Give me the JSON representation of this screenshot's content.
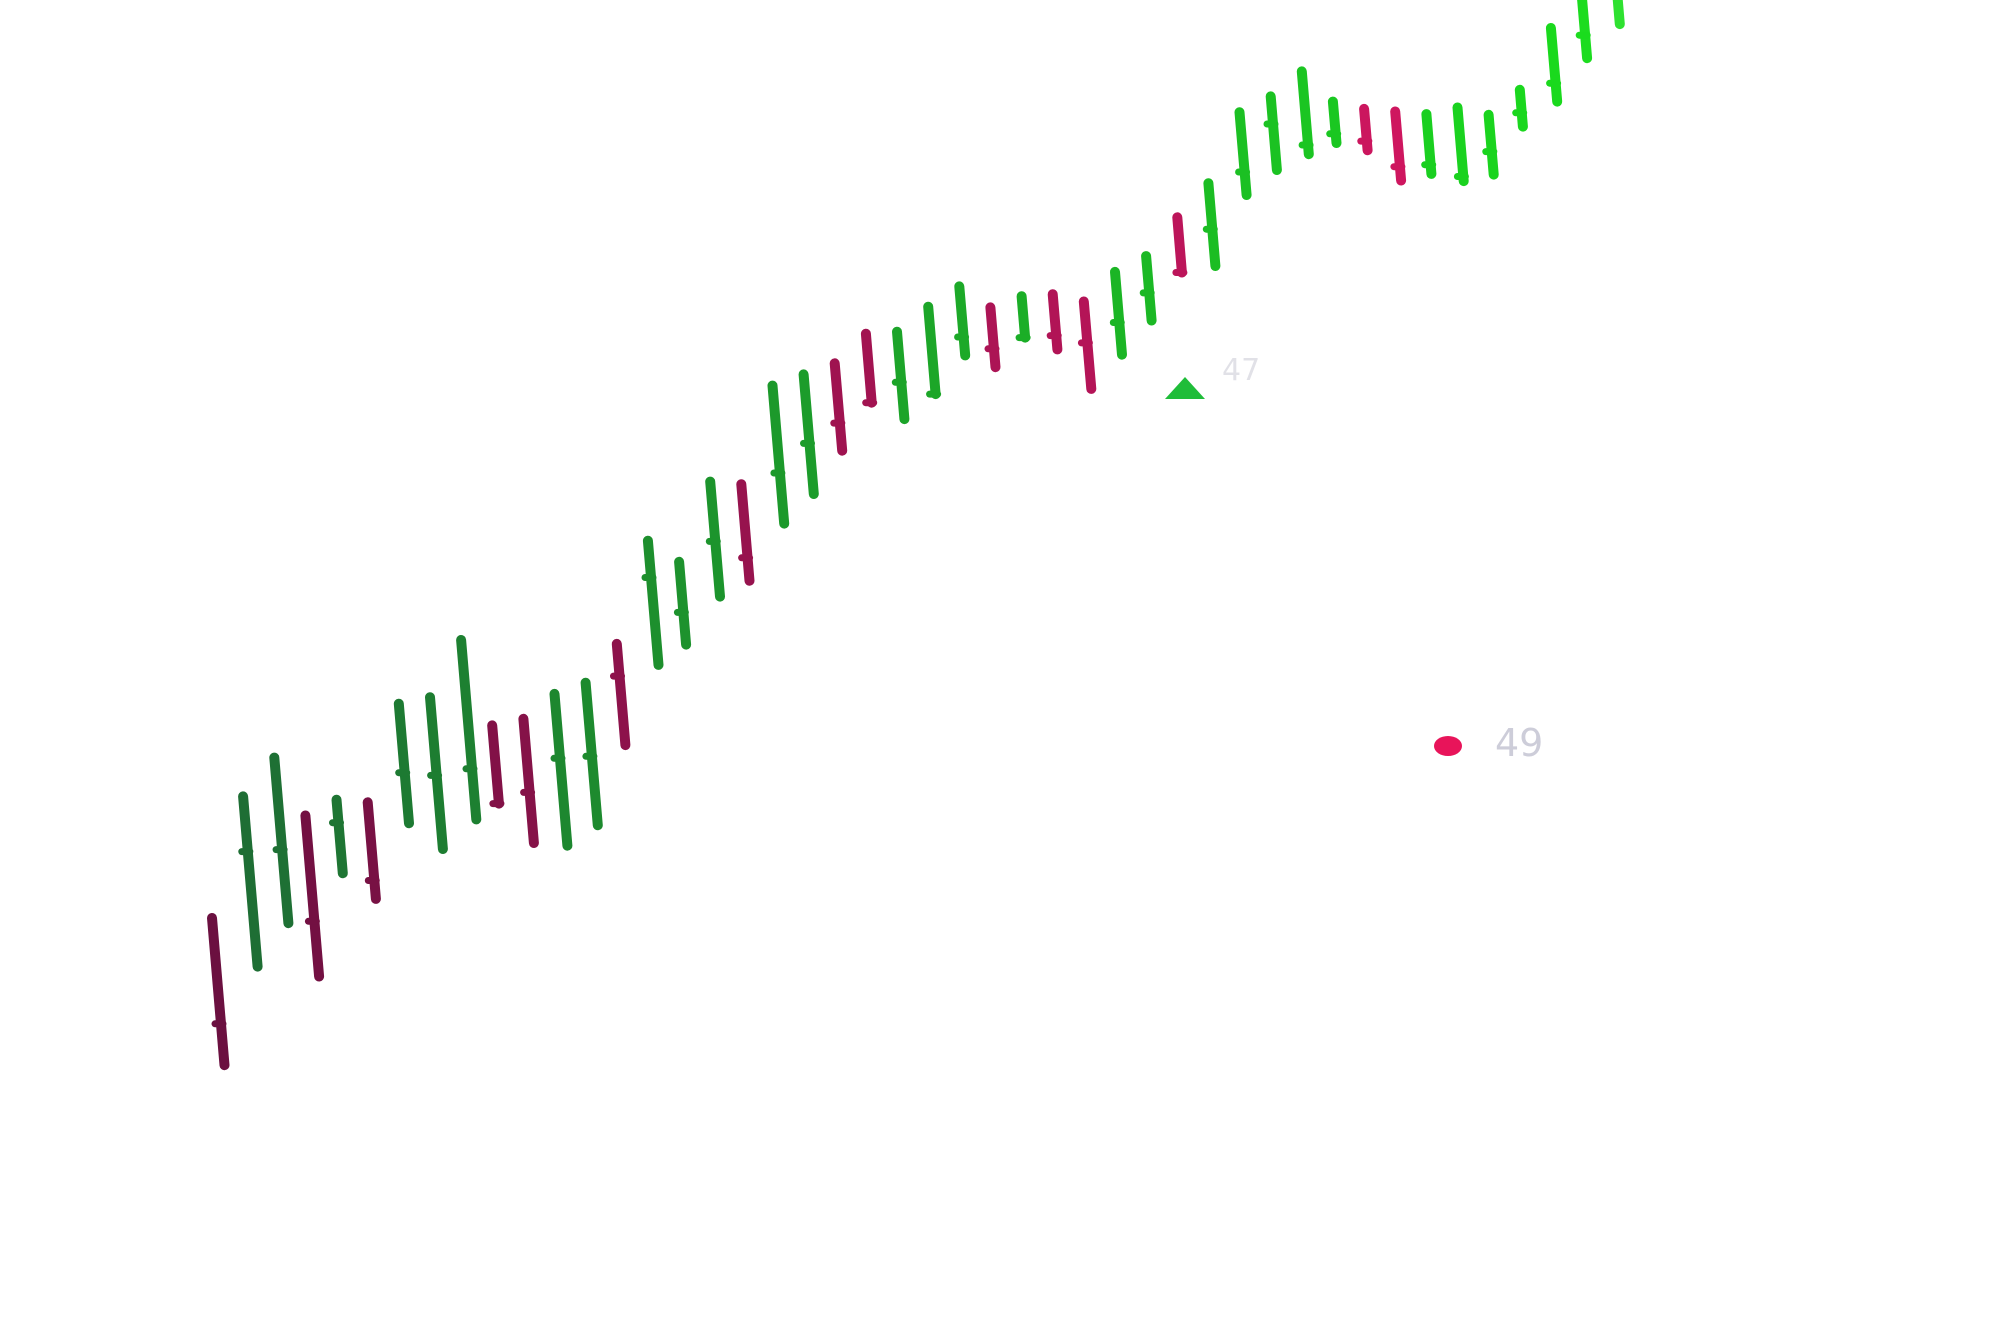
{
  "chart_data": {
    "type": "candlestick",
    "title": "",
    "xlabel": "",
    "ylabel": "",
    "axes_visible": false,
    "grid": false,
    "legend": "none",
    "colors": {
      "up_start": "#1e6b35",
      "up_end": "#19ee19",
      "down_start": "#6b1040",
      "down_end": "#f0186a",
      "marker_high": "#1fbd39",
      "marker_low": "#e8145a",
      "marker_label": "#c5c5d3"
    },
    "candles": [
      {
        "d": "down",
        "h": 13,
        "o": 22,
        "c": 45
      },
      {
        "d": "up",
        "h": 32,
        "o": 57,
        "c": 69
      },
      {
        "d": "up",
        "h": 39,
        "o": 55,
        "c": 75
      },
      {
        "d": "down",
        "h": 25,
        "o": 37,
        "c": 60
      },
      {
        "d": "up",
        "h": 45,
        "o": 56,
        "c": 61
      },
      {
        "d": "down",
        "h": 37,
        "o": 41,
        "c": 58
      },
      {
        "d": "up",
        "h": 51,
        "o": 62,
        "c": 77
      },
      {
        "d": "up",
        "h": 43,
        "o": 59,
        "c": 76
      },
      {
        "d": "up",
        "h": 47,
        "o": 58,
        "c": 86
      },
      {
        "d": "down",
        "h": 48,
        "o": 48,
        "c": 65
      },
      {
        "d": "down",
        "h": 37,
        "o": 48,
        "c": 64
      },
      {
        "d": "up",
        "h": 34,
        "o": 53,
        "c": 67
      },
      {
        "d": "up",
        "h": 36,
        "o": 51,
        "c": 67
      },
      {
        "d": "down",
        "h": 51,
        "o": 66,
        "c": 73
      },
      {
        "d": "up",
        "h": 66,
        "o": 85,
        "c": 93
      },
      {
        "d": "up",
        "h": 68,
        "o": 75,
        "c": 86
      },
      {
        "d": "up",
        "h": 76,
        "o": 88,
        "c": 101
      },
      {
        "d": "down",
        "h": 77,
        "o": 82,
        "c": 98
      },
      {
        "d": "up",
        "h": 87,
        "o": 98,
        "c": 117
      },
      {
        "d": "up",
        "h": 91,
        "o": 102,
        "c": 117
      },
      {
        "d": "down",
        "h": 98,
        "o": 104,
        "c": 117
      },
      {
        "d": "down",
        "h": 106,
        "o": 106,
        "c": 121
      },
      {
        "d": "up",
        "h": 100,
        "o": 108,
        "c": 119
      },
      {
        "d": "up",
        "h": 103,
        "o": 103,
        "c": 122
      },
      {
        "d": "up",
        "h": 109,
        "o": 113,
        "c": 124
      },
      {
        "d": "down",
        "h": 104,
        "o": 108,
        "c": 117
      },
      {
        "d": "up",
        "h": 108,
        "o": 108,
        "c": 117
      },
      {
        "d": "down",
        "h": 103,
        "o": 106,
        "c": 115
      },
      {
        "d": "down",
        "h": 92,
        "o": 102,
        "c": 111
      },
      {
        "d": "up",
        "h": 97,
        "o": 104,
        "c": 115
      },
      {
        "d": "up",
        "h": 102,
        "o": 108,
        "c": 116
      },
      {
        "d": "down",
        "h": 110,
        "o": 110,
        "c": 122
      },
      {
        "d": "up",
        "h": 109,
        "o": 117,
        "c": 127
      },
      {
        "d": "up",
        "h": 122,
        "o": 127,
        "c": 140
      },
      {
        "d": "up",
        "h": 125,
        "o": 135,
        "c": 141
      },
      {
        "d": "up",
        "h": 126,
        "o": 128,
        "c": 144
      },
      {
        "d": "up",
        "h": 126,
        "o": 128,
        "c": 135
      },
      {
        "d": "down",
        "h": 122,
        "o": 124,
        "c": 131
      },
      {
        "d": "down",
        "h": 113,
        "o": 116,
        "c": 128
      },
      {
        "d": "up",
        "h": 112,
        "o": 114,
        "c": 125
      },
      {
        "d": "up",
        "h": 108,
        "o": 109,
        "c": 124
      },
      {
        "d": "up",
        "h": 107,
        "o": 112,
        "c": 120
      },
      {
        "d": "up",
        "h": 115,
        "o": 118,
        "c": 123
      },
      {
        "d": "up",
        "h": 118,
        "o": 122,
        "c": 134
      },
      {
        "d": "up",
        "h": 125,
        "o": 130,
        "c": 138
      },
      {
        "d": "up",
        "h": 130,
        "o": 137,
        "c": 147
      },
      {
        "d": "up",
        "h": 134,
        "o": 140,
        "c": 149
      },
      {
        "d": "up",
        "h": 138,
        "o": 145,
        "c": 155
      },
      {
        "d": "up",
        "h": 141,
        "o": 150,
        "c": 158
      },
      {
        "d": "up",
        "h": 143,
        "o": 149,
        "c": 157
      },
      {
        "d": "up",
        "h": 145,
        "o": 151,
        "c": 154
      },
      {
        "d": "up",
        "h": 148,
        "o": 155,
        "c": 162
      }
    ],
    "annotations": [
      {
        "type": "high-marker",
        "shape": "triangle-up",
        "label": "47"
      },
      {
        "type": "low-marker",
        "shape": "circle",
        "label": "49"
      }
    ]
  }
}
